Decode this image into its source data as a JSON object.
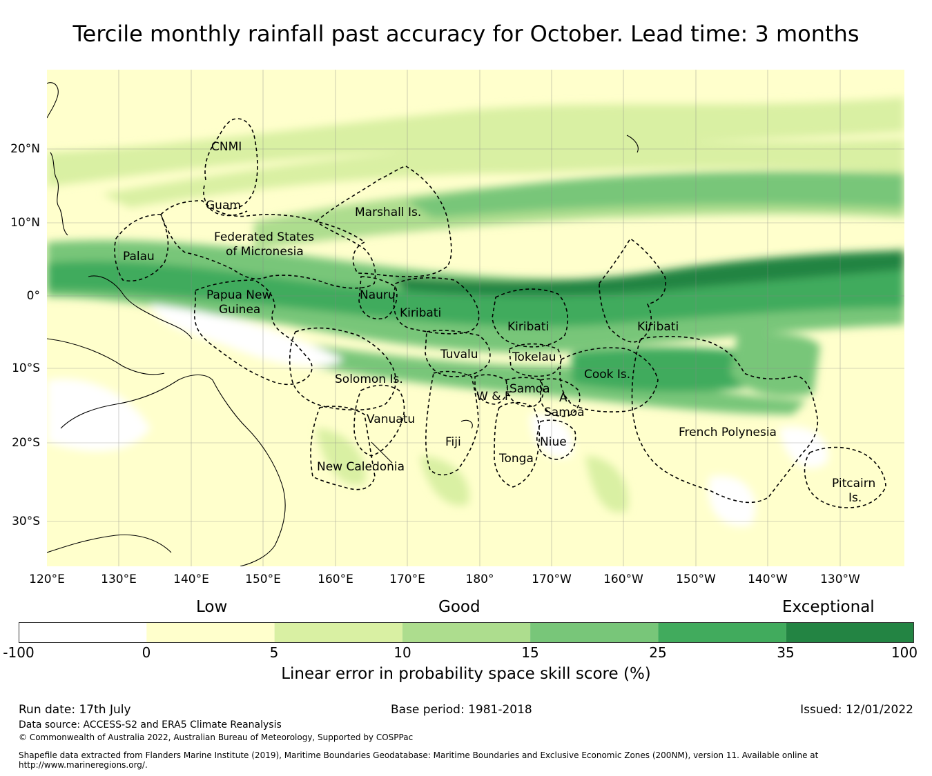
{
  "title": "Tercile monthly rainfall past accuracy for October. Lead time: 3 months",
  "map": {
    "lat_labels": [
      "20°N",
      "10°N",
      "0°",
      "10°S",
      "20°S",
      "30°S"
    ],
    "lon_labels": [
      "120°E",
      "130°E",
      "140°E",
      "150°E",
      "160°E",
      "170°E",
      "180°",
      "170°W",
      "160°W",
      "150°W",
      "140°W",
      "130°W"
    ],
    "regions": [
      {
        "name": "CNMI"
      },
      {
        "name": "Guam"
      },
      {
        "name": "Marshall Is."
      },
      {
        "name": "Federated States"
      },
      {
        "name": "of Micronesia"
      },
      {
        "name": "Palau"
      },
      {
        "name": "Papua New"
      },
      {
        "name": "Guinea"
      },
      {
        "name": "Nauru"
      },
      {
        "name": "Kiribati"
      },
      {
        "name": "Kiribati"
      },
      {
        "name": "Kiribati"
      },
      {
        "name": "Tuvalu"
      },
      {
        "name": "Tokelau"
      },
      {
        "name": "Cook Is."
      },
      {
        "name": "Solomon Is."
      },
      {
        "name": "Samoa"
      },
      {
        "name": "W & F"
      },
      {
        "name": "A."
      },
      {
        "name": "Samoa"
      },
      {
        "name": "Vanuatu"
      },
      {
        "name": "French Polynesia"
      },
      {
        "name": "Fiji"
      },
      {
        "name": "Niue"
      },
      {
        "name": "Tonga"
      },
      {
        "name": "New Caledonia"
      },
      {
        "name": "Pitcairn"
      },
      {
        "name": "Is."
      }
    ]
  },
  "legend": {
    "categories": [
      "Low",
      "Good",
      "Exceptional"
    ],
    "ticks": [
      "-100",
      "0",
      "5",
      "10",
      "15",
      "25",
      "35",
      "100"
    ],
    "colors": [
      "#ffffff",
      "#ffffcc",
      "#d9f0a3",
      "#addd8e",
      "#78c679",
      "#41ab5d",
      "#238443"
    ],
    "label": "Linear error in probability space skill score (%)"
  },
  "footer": {
    "run_date": "Run date: 17th July",
    "base_period": "Base period: 1981-2018",
    "issued": "Issued: 12/01/2022",
    "data_source": "Data source: ACCESS-S2 and ERA5 Climate Reanalysis",
    "copyright": "© Commonwealth of Australia 2022, Australian Bureau of Meteorology, Supported by COSPPac",
    "shapefile_1": "Shapefile data extracted from Flanders Marine Institute (2019), Maritime Boundaries Geodatabase: Maritime Boundaries and Exclusive Economic Zones (200NM), version 11. Available online at",
    "shapefile_2": "http://www.marineregions.org/."
  }
}
